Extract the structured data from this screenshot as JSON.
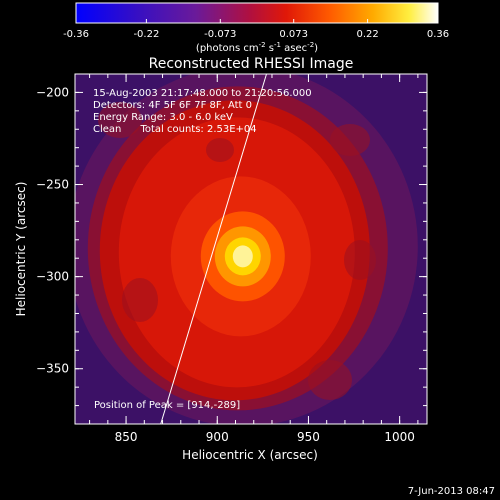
{
  "colorbar": {
    "tick_labels": [
      "-0.36",
      "-0.22",
      "-0.073",
      "0.073",
      "0.22",
      "0.36"
    ],
    "range": [
      -0.36,
      0.36
    ],
    "units_prefix": "(photons cm",
    "units_exp1": "-2",
    "units_mid": " s",
    "units_exp2": "-1",
    "units_mid2": " asec",
    "units_exp3": "-2",
    "units_suffix": ")"
  },
  "chart_data": {
    "type": "heatmap",
    "title": "Reconstructed RHESSI Image",
    "xlabel": "Heliocentric X (arcsec)",
    "ylabel": "Heliocentric Y (arcsec)",
    "xlim": [
      822,
      1015
    ],
    "ylim": [
      -380,
      -190
    ],
    "x_ticks": [
      850,
      900,
      950,
      1000
    ],
    "y_ticks": [
      -200,
      -250,
      -300,
      -350
    ],
    "x_tick_labels": [
      "850",
      "900",
      "950",
      "1000"
    ],
    "y_tick_labels": [
      "−200",
      "−250",
      "−300",
      "−350"
    ],
    "peak": [
      914,
      -289
    ],
    "limb_line": [
      [
        869,
        -380
      ],
      [
        927,
        -190
      ]
    ],
    "annotations": [
      "15-Aug-2003 21:17:48.000 to 21:20:56.000",
      "Detectors: 4F 5F 6F 7F 8F, Att 0",
      "Energy Range: 3.0 - 6.0 keV",
      "Clean      Total counts: 2.53E+04"
    ],
    "peak_label": "Position of Peak = [914,-289]"
  },
  "footer": {
    "timestamp": "7-Jun-2013 08:47"
  }
}
